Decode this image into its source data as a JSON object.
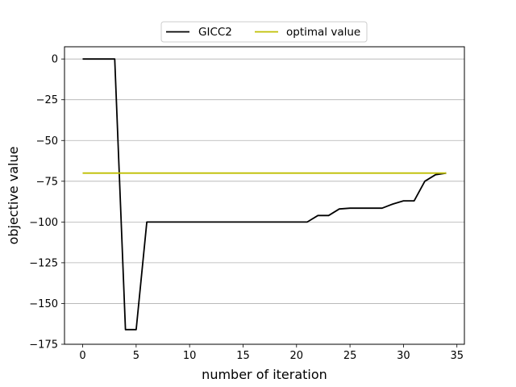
{
  "chart_data": {
    "type": "line",
    "title": "",
    "xlabel": "number of iteration",
    "ylabel": "objective value",
    "xlim": [
      -1.7,
      35.7
    ],
    "ylim": [
      -175,
      7.5
    ],
    "xticks": [
      0,
      5,
      10,
      15,
      20,
      25,
      30,
      35
    ],
    "yticks": [
      0,
      -25,
      -50,
      -75,
      -100,
      -125,
      -150,
      -175
    ],
    "ytick_labels": [
      "0",
      "−25",
      "−50",
      "−75",
      "−100",
      "−125",
      "−150",
      "−175"
    ],
    "grid": "horizontal",
    "legend_position": "top-center-outside",
    "series": [
      {
        "name": "GICC2",
        "color": "#000000",
        "x": [
          0,
          1,
          2,
          3,
          4,
          5,
          6,
          7,
          8,
          9,
          10,
          11,
          12,
          13,
          14,
          15,
          16,
          17,
          18,
          19,
          20,
          21,
          22,
          23,
          24,
          25,
          26,
          27,
          28,
          29,
          30,
          31,
          32,
          33,
          34
        ],
        "y": [
          0,
          0,
          0,
          0,
          -166,
          -166,
          -100,
          -100,
          -100,
          -100,
          -100,
          -100,
          -100,
          -100,
          -100,
          -100,
          -100,
          -100,
          -100,
          -100,
          -100,
          -100,
          -96,
          -96,
          -92,
          -91.5,
          -91.5,
          -91.5,
          -91.5,
          -89,
          -87,
          -87,
          -75,
          -71,
          -70
        ]
      },
      {
        "name": "optimal value",
        "color": "#bfbf00",
        "x": [
          0,
          34
        ],
        "y": [
          -70,
          -70
        ]
      }
    ]
  }
}
